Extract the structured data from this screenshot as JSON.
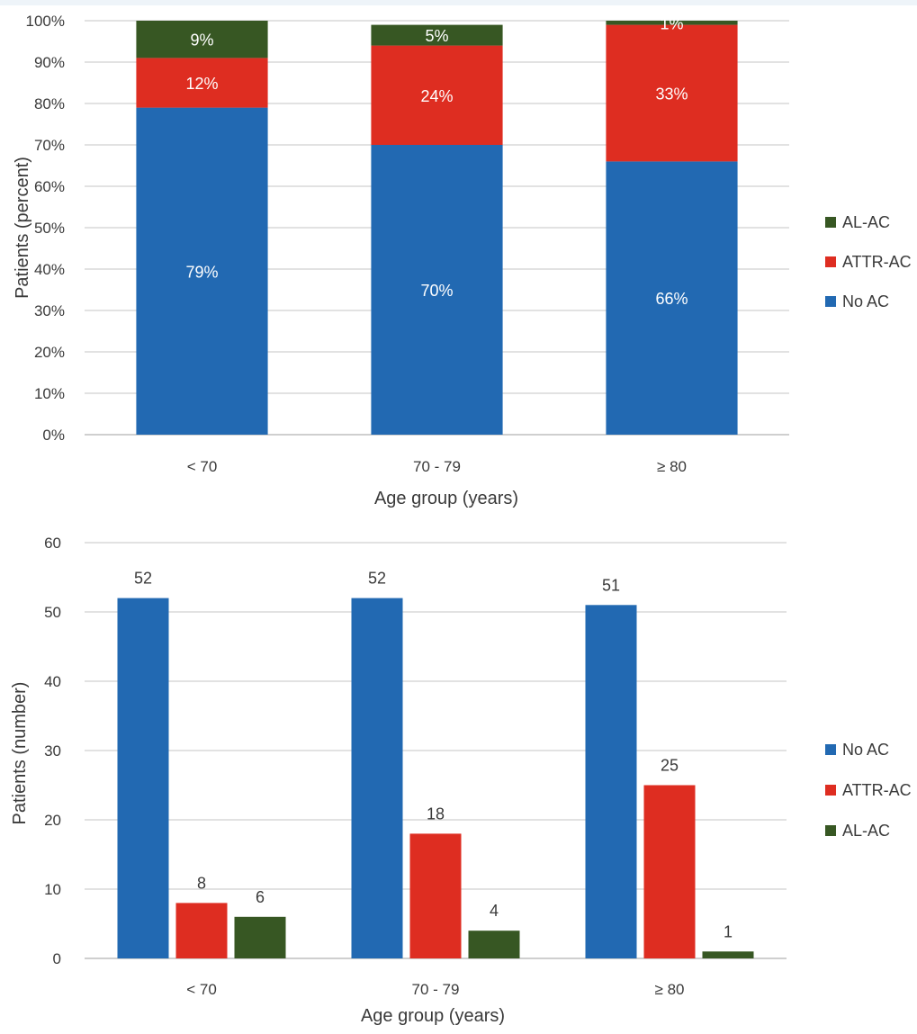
{
  "colors": {
    "no_ac": "#2269b2",
    "attr_ac": "#de2d21",
    "al_ac": "#375723"
  },
  "chart_data": [
    {
      "type": "bar",
      "stacked": true,
      "categories": [
        "< 70",
        "70 - 79",
        "≥ 80"
      ],
      "xlabel": "Age group (years)",
      "ylabel": "Patients (percent)",
      "ylim": [
        0,
        100
      ],
      "yticks": [
        "0%",
        "10%",
        "20%",
        "30%",
        "40%",
        "50%",
        "60%",
        "70%",
        "80%",
        "90%",
        "100%"
      ],
      "legend_position": "right",
      "legend_order": [
        "AL-AC",
        "ATTR-AC",
        "No AC"
      ],
      "series": [
        {
          "name": "No AC",
          "color": "#2269b2",
          "values": [
            79,
            70,
            66
          ],
          "labels": [
            "79%",
            "70%",
            "66%"
          ]
        },
        {
          "name": "ATTR-AC",
          "color": "#de2d21",
          "values": [
            12,
            24,
            33
          ],
          "labels": [
            "12%",
            "24%",
            "33%"
          ]
        },
        {
          "name": "AL-AC",
          "color": "#375723",
          "values": [
            9,
            5,
            1
          ],
          "labels": [
            "9%",
            "5%",
            "1%"
          ]
        }
      ]
    },
    {
      "type": "bar",
      "stacked": false,
      "categories": [
        "< 70",
        "70 - 79",
        "≥ 80"
      ],
      "xlabel": "Age group (years)",
      "ylabel": "Patients (number)",
      "ylim": [
        0,
        60
      ],
      "yticks": [
        "0",
        "10",
        "20",
        "30",
        "40",
        "50",
        "60"
      ],
      "legend_position": "right",
      "legend_order": [
        "No AC",
        "ATTR-AC",
        "AL-AC"
      ],
      "series": [
        {
          "name": "No AC",
          "color": "#2269b2",
          "values": [
            52,
            52,
            51
          ]
        },
        {
          "name": "ATTR-AC",
          "color": "#de2d21",
          "values": [
            8,
            18,
            25
          ]
        },
        {
          "name": "AL-AC",
          "color": "#375723",
          "values": [
            6,
            4,
            1
          ]
        }
      ]
    }
  ]
}
